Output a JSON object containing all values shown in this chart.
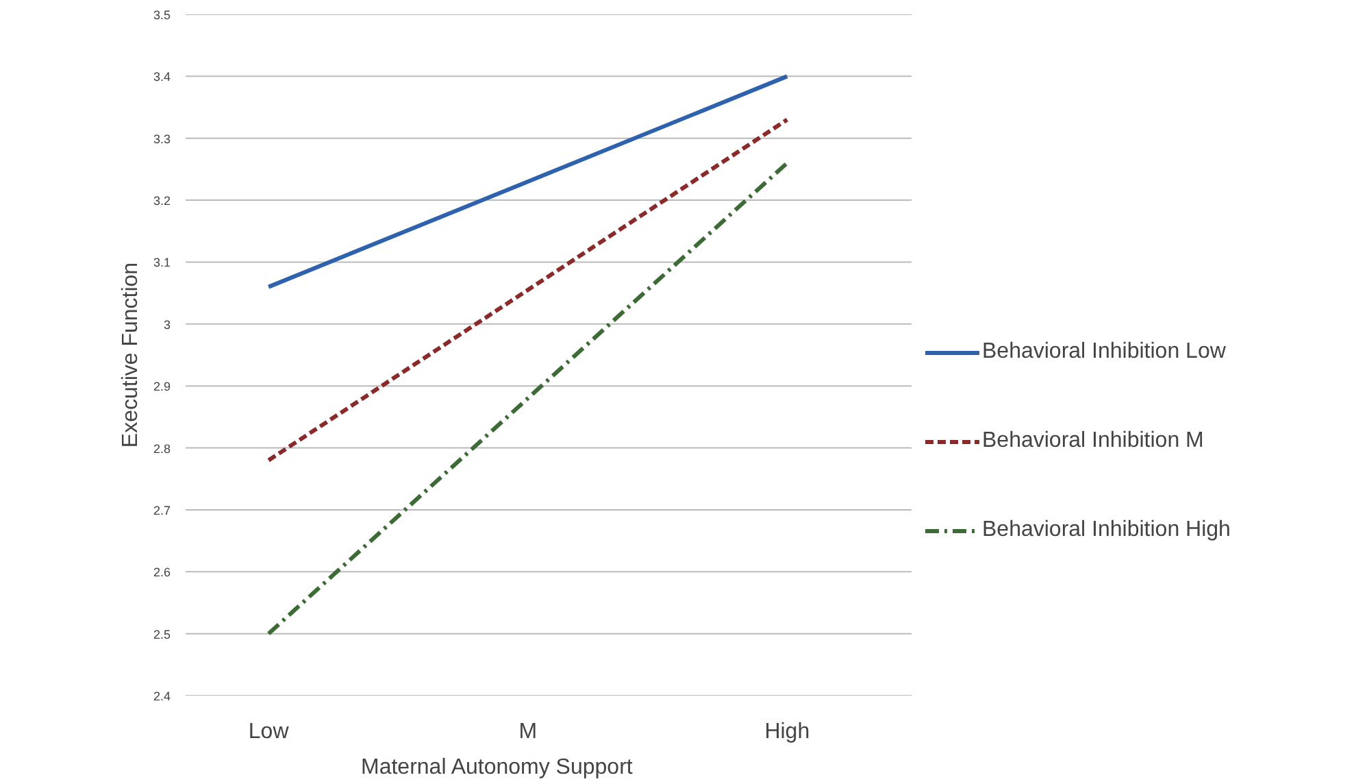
{
  "chart_data": {
    "type": "line",
    "xlabel": "Maternal Autonomy Support",
    "ylabel": "Executive Function",
    "categories": [
      "Low",
      "M",
      "High"
    ],
    "series": [
      {
        "name": "Behavioral Inhibition Low",
        "color": "#2e62ad",
        "values": [
          3.06,
          3.23,
          3.4
        ],
        "line_style": "solid"
      },
      {
        "name": "Behavioral Inhibition M",
        "color": "#8b2a2a",
        "values": [
          2.78,
          3.055,
          3.33
        ],
        "line_style": "dashed"
      },
      {
        "name": "Behavioral Inhibition High",
        "color": "#3d6b35",
        "values": [
          2.5,
          2.88,
          3.26
        ],
        "line_style": "dashdot"
      }
    ],
    "ylim": [
      2.4,
      3.5
    ],
    "yticks": [
      2.4,
      2.5,
      2.6,
      2.7,
      2.8,
      2.9,
      3,
      3.1,
      3.2,
      3.3,
      3.4,
      3.5
    ],
    "grid": "y",
    "legend": "right",
    "marker": "none"
  }
}
